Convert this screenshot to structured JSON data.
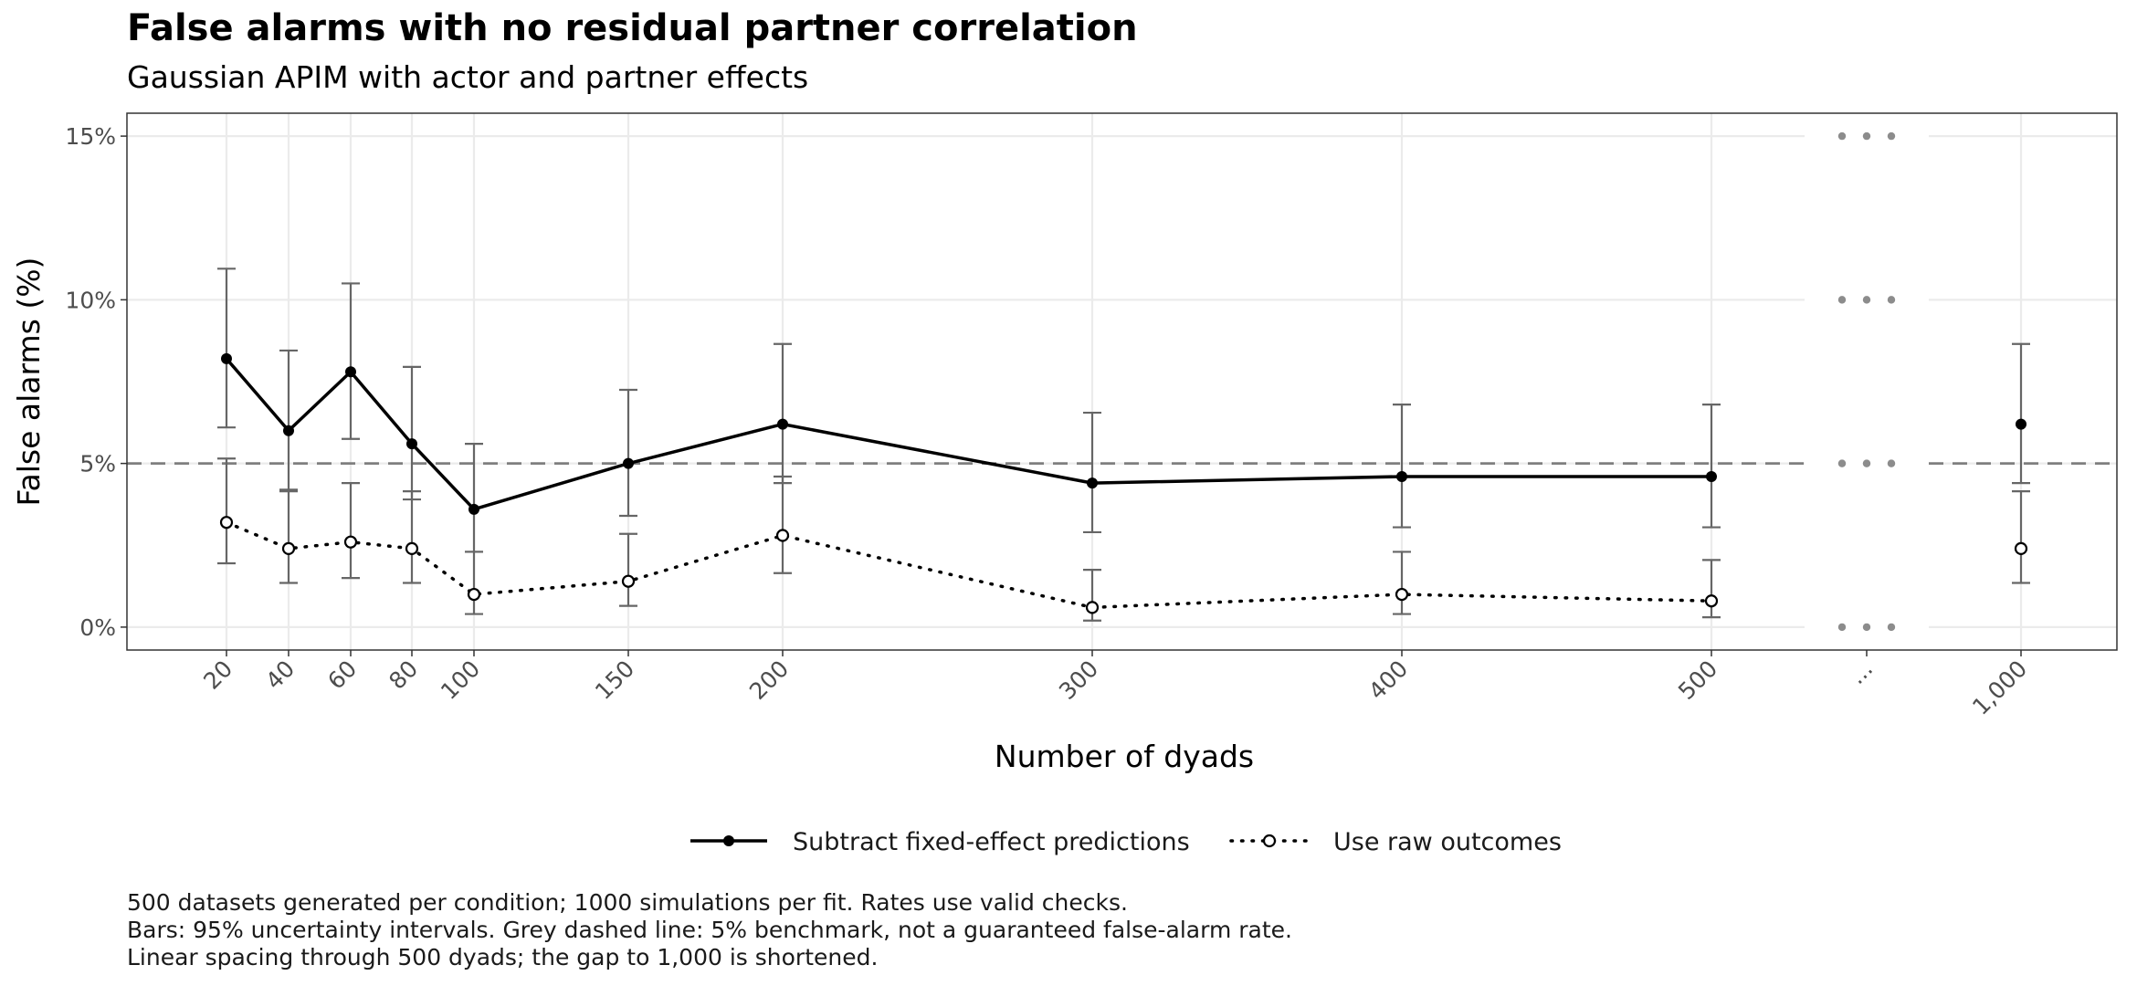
{
  "chart_data": {
    "type": "line",
    "title": "False alarms with no residual partner correlation",
    "subtitle": "Gaussian APIM with actor and partner effects",
    "xlabel": "Number of dyads",
    "ylabel": "False alarms (%)",
    "x_tick_labels": [
      "20",
      "40",
      "60",
      "80",
      "100",
      "150",
      "200",
      "300",
      "400",
      "500",
      "...",
      "1,000"
    ],
    "y_ticks": [
      0,
      5,
      10,
      15
    ],
    "y_tick_labels": [
      "0%",
      "5%",
      "10%",
      "15%"
    ],
    "ylim": [
      -0.7,
      15.7
    ],
    "benchmark": 5,
    "axis_break_after": 500,
    "grid": true,
    "legend_position": "bottom",
    "series": [
      {
        "name": "Subtract fixed-effect predictions",
        "line_style": "solid",
        "marker": "filled-circle",
        "x": [
          20,
          40,
          60,
          80,
          100,
          150,
          200,
          300,
          400,
          500,
          1000
        ],
        "y": [
          8.2,
          6.0,
          7.8,
          5.6,
          3.6,
          5.0,
          6.2,
          4.4,
          4.6,
          4.6,
          6.2
        ],
        "ci_low": [
          6.1,
          4.2,
          5.75,
          3.9,
          2.3,
          3.4,
          4.4,
          2.9,
          3.05,
          3.05,
          4.4
        ],
        "ci_high": [
          10.95,
          8.45,
          10.5,
          7.95,
          5.6,
          7.25,
          8.65,
          6.55,
          6.8,
          6.8,
          8.65
        ],
        "connect_through": 500
      },
      {
        "name": "Use raw outcomes",
        "line_style": "dotted",
        "marker": "open-circle",
        "x": [
          20,
          40,
          60,
          80,
          100,
          150,
          200,
          300,
          400,
          500,
          1000
        ],
        "y": [
          3.2,
          2.4,
          2.6,
          2.4,
          1.0,
          1.4,
          2.8,
          0.6,
          1.0,
          0.8,
          2.4
        ],
        "ci_low": [
          1.95,
          1.35,
          1.5,
          1.35,
          0.4,
          0.65,
          1.65,
          0.2,
          0.4,
          0.3,
          1.35
        ],
        "ci_high": [
          5.15,
          4.15,
          4.4,
          4.15,
          2.3,
          2.85,
          4.6,
          1.75,
          2.3,
          2.05,
          4.15
        ],
        "connect_through": 500
      }
    ],
    "caption": [
      "500 datasets generated per condition; 1000 simulations per fit. Rates use valid checks.",
      "Bars: 95% uncertainty intervals. Grey dashed line: 5% benchmark, not a guaranteed false-alarm rate.",
      "Linear spacing through 500 dyads; the gap to 1,000 is shortened."
    ],
    "colors": {
      "line": "#000000",
      "errorbar": "#666666",
      "benchmark": "#7f7f7f",
      "grid": "#ebebeb",
      "panel_border": "#333333",
      "break_dots": "#8c8c8c"
    }
  }
}
